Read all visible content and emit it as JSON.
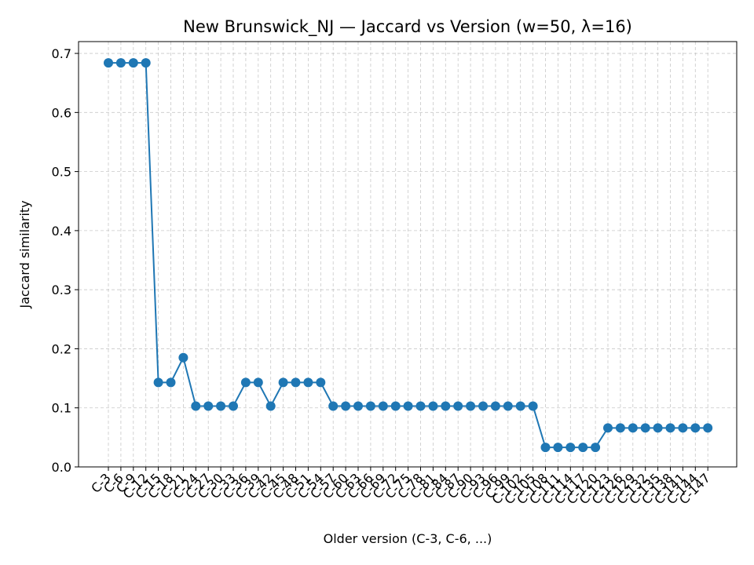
{
  "chart_data": {
    "type": "line",
    "title": "New Brunswick_NJ — Jaccard vs Version (w=50, λ=16)",
    "xlabel": "Older version (C-3, C-6, ...)",
    "ylabel": "Jaccard similarity",
    "ylim": [
      0.0,
      0.72
    ],
    "yticks": [
      "0.0",
      "0.1",
      "0.2",
      "0.3",
      "0.4",
      "0.5",
      "0.6",
      "0.7"
    ],
    "grid": true,
    "series_color": "#1f77b4",
    "categories": [
      "C-3",
      "C-6",
      "C-9",
      "C-12",
      "C-15",
      "C-18",
      "C-21",
      "C-24",
      "C-27",
      "C-30",
      "C-33",
      "C-36",
      "C-39",
      "C-42",
      "C-45",
      "C-48",
      "C-51",
      "C-54",
      "C-57",
      "C-60",
      "C-63",
      "C-66",
      "C-69",
      "C-72",
      "C-75",
      "C-78",
      "C-81",
      "C-84",
      "C-87",
      "C-90",
      "C-93",
      "C-96",
      "C-99",
      "C-102",
      "C-105",
      "C-108",
      "C-111",
      "C-114",
      "C-117",
      "C-120",
      "C-123",
      "C-126",
      "C-129",
      "C-132",
      "C-135",
      "C-138",
      "C-141",
      "C-144",
      "C-147"
    ],
    "values": [
      0.684,
      0.684,
      0.684,
      0.684,
      0.143,
      0.143,
      0.185,
      0.103,
      0.103,
      0.103,
      0.103,
      0.143,
      0.143,
      0.103,
      0.143,
      0.143,
      0.143,
      0.143,
      0.103,
      0.103,
      0.103,
      0.103,
      0.103,
      0.103,
      0.103,
      0.103,
      0.103,
      0.103,
      0.103,
      0.103,
      0.103,
      0.103,
      0.103,
      0.103,
      0.103,
      0.033,
      0.033,
      0.033,
      0.033,
      0.033,
      0.066,
      0.066,
      0.066,
      0.066,
      0.066,
      0.066,
      0.066,
      0.066,
      0.066
    ]
  }
}
